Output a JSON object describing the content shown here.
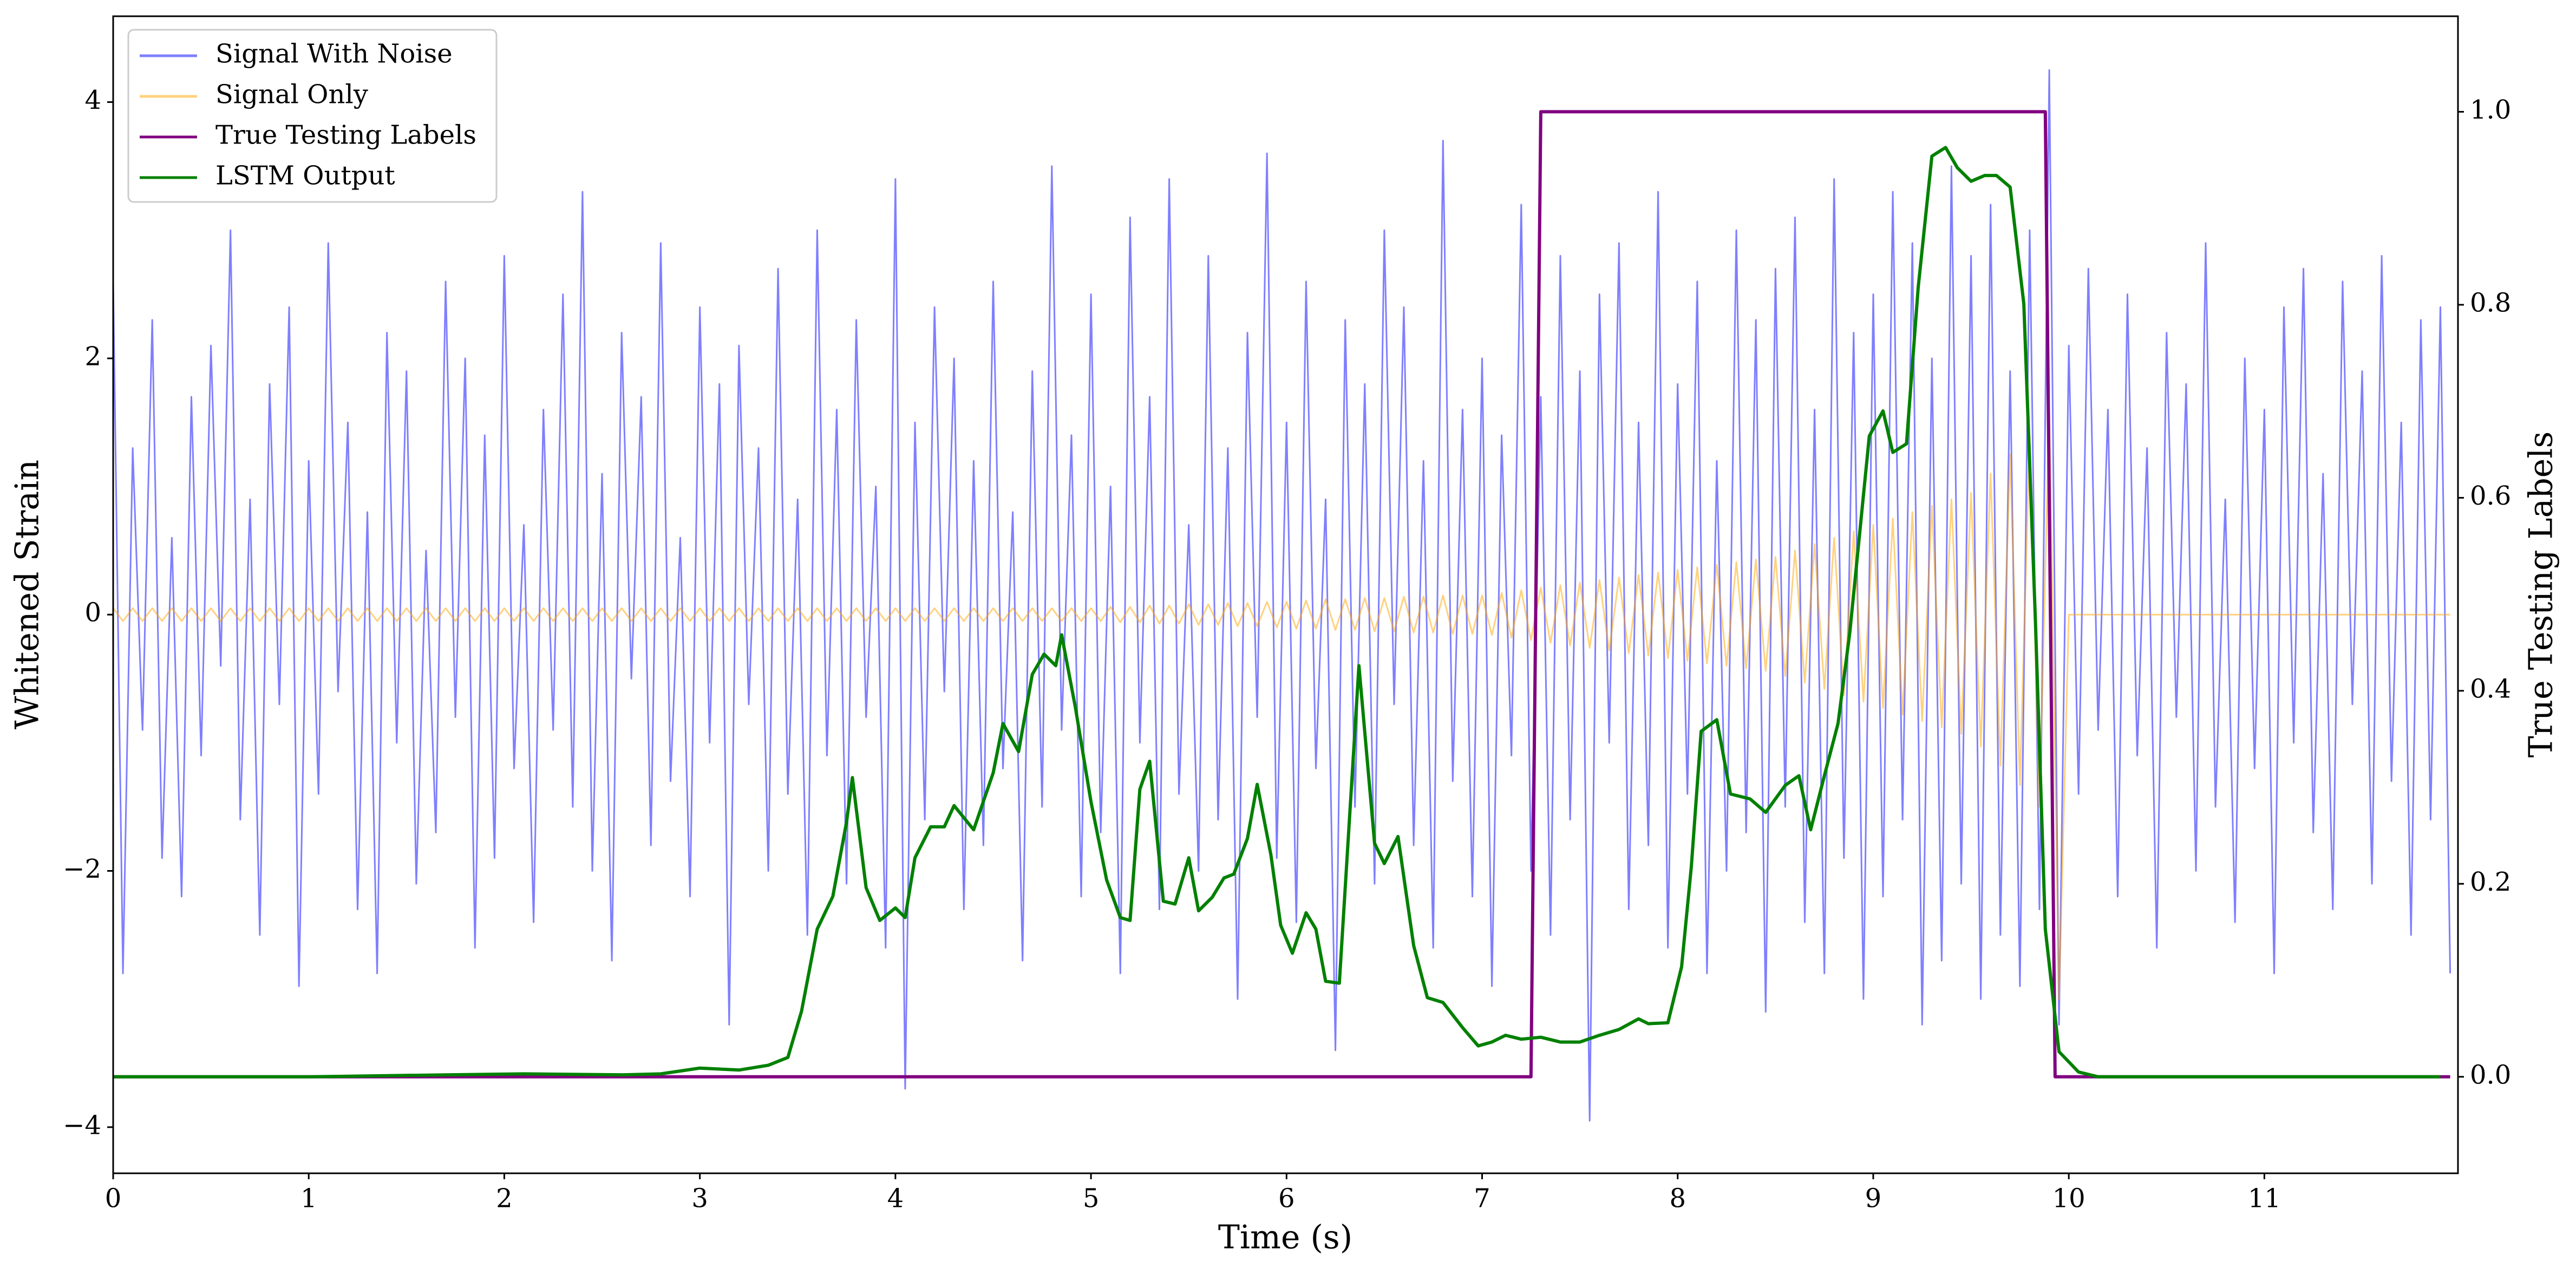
{
  "chart_data": {
    "type": "line",
    "xlabel": "Time (s)",
    "ylabel": "Whitened Strain",
    "y2label": "True Testing Labels",
    "legend": "upper left",
    "xlim": [
      0,
      11.99
    ],
    "xticks": [
      0,
      1,
      2,
      3,
      4,
      5,
      6,
      7,
      8,
      9,
      10,
      11
    ],
    "ylim": [
      -4.36,
      4.67
    ],
    "yticks": [
      {
        "value": -4,
        "label": "−4"
      },
      {
        "value": -2,
        "label": "−2"
      },
      0,
      2,
      4
    ],
    "y2lim": [
      -0.1,
      1.099
    ],
    "y2ticks": [
      {
        "value": 0,
        "label": "0.0"
      },
      0.2,
      0.4,
      0.6,
      0.8,
      {
        "value": 1,
        "label": "1.0"
      }
    ],
    "x": [
      0,
      0.05,
      0.1,
      0.15,
      0.2,
      0.25,
      0.3,
      0.35,
      0.4,
      0.45,
      0.5,
      0.55,
      0.6,
      0.65,
      0.7,
      0.75,
      0.8,
      0.85,
      0.9,
      0.95,
      1,
      1.05,
      1.1,
      1.15,
      1.2,
      1.25,
      1.3,
      1.35,
      1.4,
      1.45,
      1.5,
      1.55,
      1.6,
      1.65,
      1.7,
      1.75,
      1.8,
      1.85,
      1.9,
      1.95,
      2,
      2.05,
      2.1,
      2.15,
      2.2,
      2.25,
      2.3,
      2.35,
      2.4,
      2.45,
      2.5,
      2.55,
      2.6,
      2.65,
      2.7,
      2.75,
      2.8,
      2.85,
      2.9,
      2.95,
      3,
      3.05,
      3.1,
      3.15,
      3.2,
      3.25,
      3.3,
      3.35,
      3.4,
      3.45,
      3.5,
      3.55,
      3.6,
      3.65,
      3.7,
      3.75,
      3.8,
      3.85,
      3.9,
      3.95,
      4,
      4.05,
      4.1,
      4.15,
      4.2,
      4.25,
      4.3,
      4.35,
      4.4,
      4.45,
      4.5,
      4.55,
      4.6,
      4.65,
      4.7,
      4.75,
      4.8,
      4.85,
      4.9,
      4.95,
      5,
      5.05,
      5.1,
      5.15,
      5.2,
      5.25,
      5.3,
      5.35,
      5.4,
      5.45,
      5.5,
      5.55,
      5.6,
      5.65,
      5.7,
      5.75,
      5.8,
      5.85,
      5.9,
      5.95,
      6,
      6.05,
      6.1,
      6.15,
      6.2,
      6.25,
      6.3,
      6.35,
      6.4,
      6.45,
      6.5,
      6.55,
      6.6,
      6.65,
      6.7,
      6.75,
      6.8,
      6.85,
      6.9,
      6.95,
      7,
      7.05,
      7.1,
      7.15,
      7.2,
      7.25,
      7.3,
      7.35,
      7.4,
      7.45,
      7.5,
      7.55,
      7.6,
      7.65,
      7.7,
      7.75,
      7.8,
      7.85,
      7.9,
      7.95,
      8,
      8.05,
      8.1,
      8.15,
      8.2,
      8.25,
      8.3,
      8.35,
      8.4,
      8.45,
      8.5,
      8.55,
      8.6,
      8.65,
      8.7,
      8.75,
      8.8,
      8.85,
      8.9,
      8.95,
      9,
      9.05,
      9.1,
      9.15,
      9.2,
      9.25,
      9.3,
      9.35,
      9.4,
      9.45,
      9.5,
      9.55,
      9.6,
      9.65,
      9.7,
      9.75,
      9.8,
      9.85,
      9.9,
      9.95,
      10,
      10.05,
      10.1,
      10.15,
      10.2,
      10.25,
      10.3,
      10.35,
      10.4,
      10.45,
      10.5,
      10.55,
      10.6,
      10.65,
      10.7,
      10.75,
      10.8,
      10.85,
      10.9,
      10.95,
      11,
      11.05,
      11.1,
      11.15,
      11.2,
      11.25,
      11.3,
      11.35,
      11.4,
      11.45,
      11.5,
      11.55,
      11.6,
      11.65,
      11.7,
      11.75,
      11.8,
      11.85,
      11.9,
      11.95
    ],
    "series": [
      {
        "name": "Signal With Noise",
        "color": "#0000ff",
        "opacity": 0.5,
        "values": [
          2.6,
          -2.8,
          1.3,
          -0.9,
          2.3,
          -1.9,
          0.6,
          -2.2,
          1.7,
          -1.1,
          2.1,
          -0.4,
          3.0,
          -1.6,
          0.9,
          -2.5,
          1.8,
          -0.7,
          2.4,
          -2.9,
          1.2,
          -1.4,
          2.9,
          -0.6,
          1.5,
          -2.3,
          0.8,
          -2.8,
          2.2,
          -1.0,
          1.9,
          -2.1,
          0.5,
          -1.7,
          2.6,
          -0.8,
          2.0,
          -2.6,
          1.4,
          -1.9,
          2.8,
          -1.2,
          0.7,
          -2.4,
          1.6,
          -0.9,
          2.5,
          -1.5,
          3.3,
          -2.0,
          1.1,
          -2.7,
          2.2,
          -0.5,
          1.7,
          -1.8,
          2.9,
          -1.3,
          0.6,
          -2.2,
          2.4,
          -1.0,
          1.8,
          -3.2,
          2.1,
          -0.7,
          1.3,
          -2.0,
          2.7,
          -1.4,
          0.9,
          -2.5,
          3.0,
          -1.1,
          1.6,
          -2.1,
          2.3,
          -0.8,
          1.0,
          -2.6,
          3.4,
          -3.7,
          1.5,
          -1.6,
          2.4,
          -0.6,
          2.0,
          -2.3,
          1.2,
          -1.8,
          2.6,
          -1.2,
          0.8,
          -2.7,
          1.9,
          -1.5,
          3.5,
          -0.9,
          1.4,
          -2.2,
          2.5,
          -1.7,
          1.0,
          -2.8,
          3.1,
          -1.0,
          1.7,
          -2.3,
          3.4,
          -1.4,
          0.7,
          -2.0,
          2.8,
          -1.6,
          1.3,
          -3.0,
          2.2,
          -0.8,
          3.6,
          -1.9,
          1.5,
          -2.4,
          2.6,
          -1.2,
          0.9,
          -3.4,
          2.3,
          -1.5,
          1.8,
          -2.1,
          3.0,
          -0.7,
          2.4,
          -1.8,
          1.2,
          -2.6,
          3.7,
          -1.3,
          1.6,
          -2.2,
          2.0,
          -2.9,
          1.4,
          -1.1,
          3.2,
          -2.0,
          1.7,
          -2.5,
          2.8,
          -1.6,
          1.9,
          -3.95,
          2.5,
          -1.0,
          2.9,
          -2.3,
          1.5,
          -1.8,
          3.3,
          -2.6,
          1.8,
          -1.4,
          2.6,
          -2.8,
          1.2,
          -2.0,
          3.0,
          -1.7,
          2.3,
          -3.1,
          2.7,
          -1.5,
          3.1,
          -2.4,
          1.6,
          -2.8,
          3.4,
          -1.9,
          2.2,
          -3.0,
          2.5,
          -2.2,
          3.3,
          -1.6,
          2.9,
          -3.2,
          2.0,
          -2.7,
          3.5,
          -2.1,
          2.8,
          -3.0,
          3.2,
          -2.5,
          1.9,
          -2.9,
          3.0,
          -2.3,
          4.25,
          -3.2,
          2.1,
          -1.4,
          2.7,
          -0.9,
          1.6,
          -2.2,
          2.5,
          -1.1,
          1.3,
          -2.6,
          2.2,
          -0.8,
          1.8,
          -2.0,
          2.9,
          -1.5,
          0.9,
          -2.4,
          2.0,
          -1.2,
          1.6,
          -2.8,
          2.4,
          -1.0,
          2.7,
          -1.7,
          1.1,
          -2.3,
          2.6,
          -0.7,
          1.9,
          -2.1,
          2.8,
          -1.3,
          1.5,
          -2.5,
          2.3,
          -1.6,
          2.4,
          -2.8
        ]
      },
      {
        "name": "Signal Only",
        "color": "orange",
        "opacity": 0.5,
        "values": [
          0.05,
          -0.05,
          0.05,
          -0.05,
          0.05,
          -0.05,
          0.05,
          -0.05,
          0.05,
          -0.05,
          0.05,
          -0.05,
          0.05,
          -0.05,
          0.05,
          -0.05,
          0.05,
          -0.05,
          0.05,
          -0.05,
          0.05,
          -0.05,
          0.05,
          -0.05,
          0.05,
          -0.05,
          0.05,
          -0.05,
          0.05,
          -0.05,
          0.05,
          -0.05,
          0.05,
          -0.05,
          0.05,
          -0.05,
          0.05,
          -0.05,
          0.05,
          -0.05,
          0.05,
          -0.05,
          0.05,
          -0.05,
          0.05,
          -0.05,
          0.05,
          -0.05,
          0.05,
          -0.05,
          0.05,
          -0.05,
          0.05,
          -0.05,
          0.05,
          -0.05,
          0.05,
          -0.05,
          0.05,
          -0.05,
          0.05,
          -0.05,
          0.05,
          -0.05,
          0.05,
          -0.05,
          0.05,
          -0.05,
          0.05,
          -0.05,
          0.05,
          -0.05,
          0.05,
          -0.05,
          0.05,
          -0.05,
          0.05,
          -0.05,
          0.05,
          -0.05,
          0.05,
          -0.05,
          0.05,
          -0.05,
          0.05,
          -0.05,
          0.05,
          -0.05,
          0.05,
          -0.05,
          0.05,
          -0.05,
          0.05,
          -0.05,
          0.05,
          -0.05,
          0.05,
          -0.05,
          0.05,
          -0.05,
          0.05,
          -0.05,
          0.06,
          -0.06,
          0.06,
          -0.06,
          0.07,
          -0.07,
          0.07,
          -0.07,
          0.08,
          -0.08,
          0.08,
          -0.08,
          0.09,
          -0.09,
          0.09,
          -0.09,
          0.1,
          -0.1,
          0.1,
          -0.11,
          0.11,
          -0.11,
          0.12,
          -0.12,
          0.12,
          -0.12,
          0.13,
          -0.13,
          0.13,
          -0.13,
          0.14,
          -0.14,
          0.14,
          -0.14,
          0.15,
          -0.15,
          0.15,
          -0.15,
          0.15,
          -0.16,
          0.17,
          -0.18,
          0.19,
          -0.2,
          0.21,
          -0.22,
          0.23,
          -0.24,
          0.25,
          -0.26,
          0.27,
          -0.28,
          0.29,
          -0.3,
          0.31,
          -0.32,
          0.33,
          -0.34,
          0.35,
          -0.36,
          0.37,
          -0.38,
          0.39,
          -0.4,
          0.41,
          -0.42,
          0.43,
          -0.44,
          0.45,
          -0.48,
          0.5,
          -0.53,
          0.55,
          -0.58,
          0.6,
          -0.63,
          0.65,
          -0.68,
          0.7,
          -0.73,
          0.75,
          -0.78,
          0.8,
          -0.83,
          0.85,
          -0.88,
          0.9,
          -0.93,
          0.95,
          -1.03,
          1.1,
          -1.18,
          1.25,
          -1.33,
          1.4,
          -1.5,
          1.6,
          -3.0,
          0,
          0,
          0,
          0,
          0,
          0,
          0,
          0,
          0,
          0,
          0,
          0,
          0,
          0,
          0,
          0,
          0,
          0,
          0,
          0,
          0,
          0,
          0,
          0,
          0,
          0,
          0,
          0,
          0,
          0,
          0,
          0,
          0,
          0,
          0,
          0,
          0,
          0,
          0,
          0
        ]
      },
      {
        "name": "True Testing Labels",
        "color": "purple",
        "axis": "y2",
        "x": [
          0,
          7.25,
          7.3,
          9.88,
          9.93,
          11.95
        ],
        "values": [
          0,
          0,
          1,
          1,
          0,
          0
        ]
      },
      {
        "name": "LSTM Output",
        "color": "green",
        "axis": "y2",
        "x": [
          0,
          1.0,
          1.7,
          2.1,
          2.6,
          2.8,
          3.0,
          3.2,
          3.35,
          3.45,
          3.52,
          3.6,
          3.68,
          3.75,
          3.78,
          3.85,
          3.92,
          4.0,
          4.05,
          4.1,
          4.18,
          4.25,
          4.3,
          4.4,
          4.5,
          4.55,
          4.63,
          4.7,
          4.76,
          4.82,
          4.85,
          4.92,
          5.0,
          5.08,
          5.15,
          5.2,
          5.25,
          5.3,
          5.37,
          5.43,
          5.5,
          5.55,
          5.62,
          5.68,
          5.73,
          5.8,
          5.85,
          5.92,
          5.97,
          6.03,
          6.1,
          6.15,
          6.2,
          6.27,
          6.37,
          6.45,
          6.5,
          6.57,
          6.65,
          6.72,
          6.8,
          6.9,
          6.98,
          7.05,
          7.12,
          7.2,
          7.3,
          7.4,
          7.5,
          7.6,
          7.7,
          7.8,
          7.85,
          7.95,
          8.02,
          8.07,
          8.12,
          8.2,
          8.27,
          8.37,
          8.45,
          8.55,
          8.62,
          8.68,
          8.75,
          8.82,
          8.88,
          8.93,
          8.98,
          9.05,
          9.1,
          9.17,
          9.23,
          9.3,
          9.37,
          9.43,
          9.5,
          9.57,
          9.63,
          9.7,
          9.77,
          9.83,
          9.88,
          9.95,
          10.05,
          10.15,
          11.9
        ],
        "values": [
          0,
          0,
          0.002,
          0.003,
          0.002,
          0.003,
          0.009,
          0.007,
          0.012,
          0.02,
          0.068,
          0.153,
          0.187,
          0.264,
          0.31,
          0.196,
          0.162,
          0.175,
          0.165,
          0.227,
          0.259,
          0.259,
          0.281,
          0.256,
          0.315,
          0.366,
          0.337,
          0.417,
          0.438,
          0.426,
          0.458,
          0.383,
          0.285,
          0.204,
          0.165,
          0.162,
          0.298,
          0.327,
          0.182,
          0.179,
          0.227,
          0.172,
          0.186,
          0.206,
          0.21,
          0.247,
          0.303,
          0.23,
          0.157,
          0.128,
          0.17,
          0.153,
          0.099,
          0.097,
          0.426,
          0.242,
          0.221,
          0.249,
          0.136,
          0.082,
          0.077,
          0.051,
          0.032,
          0.036,
          0.043,
          0.039,
          0.041,
          0.036,
          0.036,
          0.043,
          0.049,
          0.06,
          0.055,
          0.056,
          0.114,
          0.218,
          0.358,
          0.37,
          0.293,
          0.288,
          0.274,
          0.302,
          0.312,
          0.256,
          0.312,
          0.366,
          0.46,
          0.562,
          0.664,
          0.69,
          0.647,
          0.656,
          0.818,
          0.954,
          0.963,
          0.942,
          0.928,
          0.934,
          0.934,
          0.922,
          0.801,
          0.468,
          0.153,
          0.026,
          0.005,
          0,
          0
        ]
      }
    ]
  }
}
